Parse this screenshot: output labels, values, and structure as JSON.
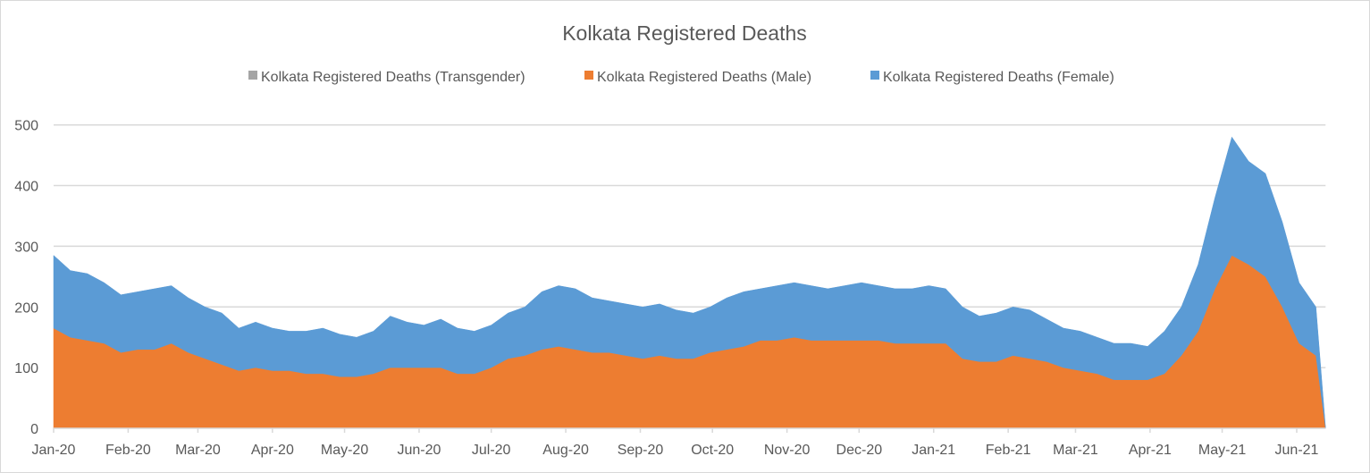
{
  "chart_data": {
    "type": "area",
    "stacked": true,
    "title": "Kolkata Registered Deaths",
    "xlabel": "",
    "ylabel": "",
    "ylim": [
      0,
      500
    ],
    "yticks": [
      "0",
      "100",
      "200",
      "300",
      "400",
      "500"
    ],
    "xticks": [
      {
        "date": "2020-01-01",
        "label": "Jan-20"
      },
      {
        "date": "2020-02-01",
        "label": "Feb-20"
      },
      {
        "date": "2020-03-01",
        "label": "Mar-20"
      },
      {
        "date": "2020-04-01",
        "label": "Apr-20"
      },
      {
        "date": "2020-05-01",
        "label": "May-20"
      },
      {
        "date": "2020-06-01",
        "label": "Jun-20"
      },
      {
        "date": "2020-07-01",
        "label": "Jul-20"
      },
      {
        "date": "2020-08-01",
        "label": "Aug-20"
      },
      {
        "date": "2020-09-01",
        "label": "Sep-20"
      },
      {
        "date": "2020-10-01",
        "label": "Oct-20"
      },
      {
        "date": "2020-11-01",
        "label": "Nov-20"
      },
      {
        "date": "2020-12-01",
        "label": "Dec-20"
      },
      {
        "date": "2021-01-01",
        "label": "Jan-21"
      },
      {
        "date": "2021-02-01",
        "label": "Feb-21"
      },
      {
        "date": "2021-03-01",
        "label": "Mar-21"
      },
      {
        "date": "2021-04-01",
        "label": "Apr-21"
      },
      {
        "date": "2021-05-01",
        "label": "May-21"
      },
      {
        "date": "2021-06-01",
        "label": "Jun-21"
      }
    ],
    "xrange": [
      "2020-01-01",
      "2021-06-13"
    ],
    "grid": true,
    "legend_position": "top",
    "x": [
      "2020-01-01",
      "2020-01-08",
      "2020-01-15",
      "2020-01-22",
      "2020-01-29",
      "2020-02-05",
      "2020-02-12",
      "2020-02-19",
      "2020-02-26",
      "2020-03-04",
      "2020-03-11",
      "2020-03-18",
      "2020-03-25",
      "2020-04-01",
      "2020-04-08",
      "2020-04-15",
      "2020-04-22",
      "2020-04-29",
      "2020-05-06",
      "2020-05-13",
      "2020-05-20",
      "2020-05-27",
      "2020-06-03",
      "2020-06-10",
      "2020-06-17",
      "2020-06-24",
      "2020-07-01",
      "2020-07-08",
      "2020-07-15",
      "2020-07-22",
      "2020-07-29",
      "2020-08-05",
      "2020-08-12",
      "2020-08-19",
      "2020-08-26",
      "2020-09-02",
      "2020-09-09",
      "2020-09-16",
      "2020-09-23",
      "2020-09-30",
      "2020-10-07",
      "2020-10-14",
      "2020-10-21",
      "2020-10-28",
      "2020-11-04",
      "2020-11-11",
      "2020-11-18",
      "2020-11-25",
      "2020-12-02",
      "2020-12-09",
      "2020-12-16",
      "2020-12-23",
      "2020-12-30",
      "2021-01-06",
      "2021-01-13",
      "2021-01-20",
      "2021-01-27",
      "2021-02-03",
      "2021-02-10",
      "2021-02-17",
      "2021-02-24",
      "2021-03-03",
      "2021-03-10",
      "2021-03-17",
      "2021-03-24",
      "2021-03-31",
      "2021-04-07",
      "2021-04-14",
      "2021-04-21",
      "2021-04-28",
      "2021-05-05",
      "2021-05-12",
      "2021-05-19",
      "2021-05-26",
      "2021-06-02",
      "2021-06-09",
      "2021-06-13"
    ],
    "series": [
      {
        "name": "Kolkata Registered Deaths (Transgender)",
        "color": "#A5A5A5",
        "values": [
          0,
          0,
          0,
          0,
          0,
          0,
          0,
          0,
          0,
          0,
          0,
          0,
          0,
          0,
          0,
          0,
          0,
          0,
          0,
          0,
          0,
          0,
          0,
          0,
          0,
          0,
          0,
          0,
          0,
          0,
          0,
          0,
          0,
          0,
          0,
          0,
          0,
          0,
          0,
          0,
          0,
          0,
          0,
          0,
          0,
          0,
          0,
          0,
          0,
          0,
          0,
          0,
          0,
          0,
          0,
          0,
          0,
          0,
          0,
          0,
          0,
          0,
          0,
          0,
          0,
          0,
          0,
          0,
          0,
          0,
          0,
          0,
          0,
          0,
          0,
          0,
          0
        ]
      },
      {
        "name": "Kolkata Registered Deaths (Male)",
        "color": "#ED7D31",
        "values": [
          165,
          150,
          145,
          140,
          125,
          130,
          130,
          140,
          125,
          115,
          105,
          95,
          100,
          95,
          95,
          90,
          90,
          85,
          85,
          90,
          100,
          100,
          100,
          100,
          90,
          90,
          100,
          115,
          120,
          130,
          135,
          130,
          125,
          125,
          120,
          115,
          120,
          115,
          115,
          125,
          130,
          135,
          145,
          145,
          150,
          145,
          145,
          145,
          145,
          145,
          140,
          140,
          140,
          140,
          115,
          110,
          110,
          120,
          115,
          110,
          100,
          95,
          90,
          80,
          80,
          80,
          90,
          120,
          160,
          230,
          285,
          270,
          250,
          200,
          140,
          120,
          0
        ]
      },
      {
        "name": "Kolkata Registered Deaths  (Female)",
        "color": "#5B9BD5",
        "values": [
          120,
          110,
          110,
          100,
          95,
          95,
          100,
          95,
          90,
          85,
          85,
          70,
          75,
          70,
          65,
          70,
          75,
          70,
          65,
          70,
          85,
          75,
          70,
          80,
          75,
          70,
          70,
          75,
          80,
          95,
          100,
          100,
          90,
          85,
          85,
          85,
          85,
          80,
          75,
          75,
          85,
          90,
          85,
          90,
          90,
          90,
          85,
          90,
          95,
          90,
          90,
          90,
          95,
          90,
          85,
          75,
          80,
          80,
          80,
          70,
          65,
          65,
          60,
          60,
          60,
          55,
          70,
          80,
          110,
          150,
          195,
          170,
          170,
          140,
          100,
          80,
          0
        ]
      }
    ]
  }
}
